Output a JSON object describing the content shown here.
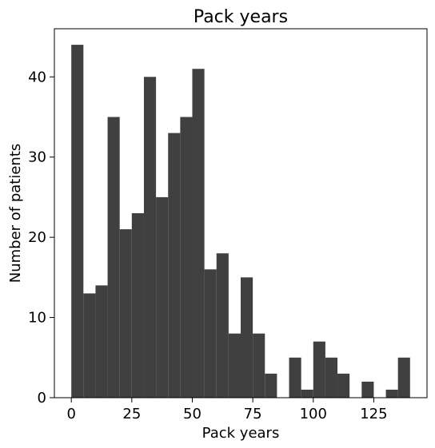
{
  "chart_data": {
    "type": "bar",
    "title": "Pack years",
    "xlabel": "Pack years",
    "ylabel": "Number of patients",
    "xlim": [
      -7,
      147
    ],
    "ylim": [
      0,
      46
    ],
    "xticks": [
      0,
      25,
      50,
      75,
      100,
      125
    ],
    "yticks": [
      0,
      10,
      20,
      30,
      40
    ],
    "bar_color": "#404040",
    "grid": false,
    "legend": "none",
    "bins": [
      {
        "x0": 0,
        "x1": 5,
        "count": 44
      },
      {
        "x0": 5,
        "x1": 10,
        "count": 13
      },
      {
        "x0": 10,
        "x1": 15,
        "count": 14
      },
      {
        "x0": 15,
        "x1": 20,
        "count": 35
      },
      {
        "x0": 20,
        "x1": 25,
        "count": 21
      },
      {
        "x0": 25,
        "x1": 30,
        "count": 23
      },
      {
        "x0": 30,
        "x1": 35,
        "count": 40
      },
      {
        "x0": 35,
        "x1": 40,
        "count": 25
      },
      {
        "x0": 40,
        "x1": 45,
        "count": 33
      },
      {
        "x0": 45,
        "x1": 50,
        "count": 35
      },
      {
        "x0": 50,
        "x1": 55,
        "count": 41
      },
      {
        "x0": 55,
        "x1": 60,
        "count": 16
      },
      {
        "x0": 60,
        "x1": 65,
        "count": 18
      },
      {
        "x0": 65,
        "x1": 70,
        "count": 8
      },
      {
        "x0": 70,
        "x1": 75,
        "count": 15
      },
      {
        "x0": 75,
        "x1": 80,
        "count": 8
      },
      {
        "x0": 80,
        "x1": 85,
        "count": 3
      },
      {
        "x0": 85,
        "x1": 90,
        "count": 0
      },
      {
        "x0": 90,
        "x1": 95,
        "count": 5
      },
      {
        "x0": 95,
        "x1": 100,
        "count": 1
      },
      {
        "x0": 100,
        "x1": 105,
        "count": 7
      },
      {
        "x0": 105,
        "x1": 110,
        "count": 5
      },
      {
        "x0": 110,
        "x1": 115,
        "count": 3
      },
      {
        "x0": 115,
        "x1": 120,
        "count": 0
      },
      {
        "x0": 120,
        "x1": 125,
        "count": 2
      },
      {
        "x0": 125,
        "x1": 130,
        "count": 0
      },
      {
        "x0": 130,
        "x1": 135,
        "count": 1
      },
      {
        "x0": 135,
        "x1": 140,
        "count": 5
      }
    ]
  }
}
